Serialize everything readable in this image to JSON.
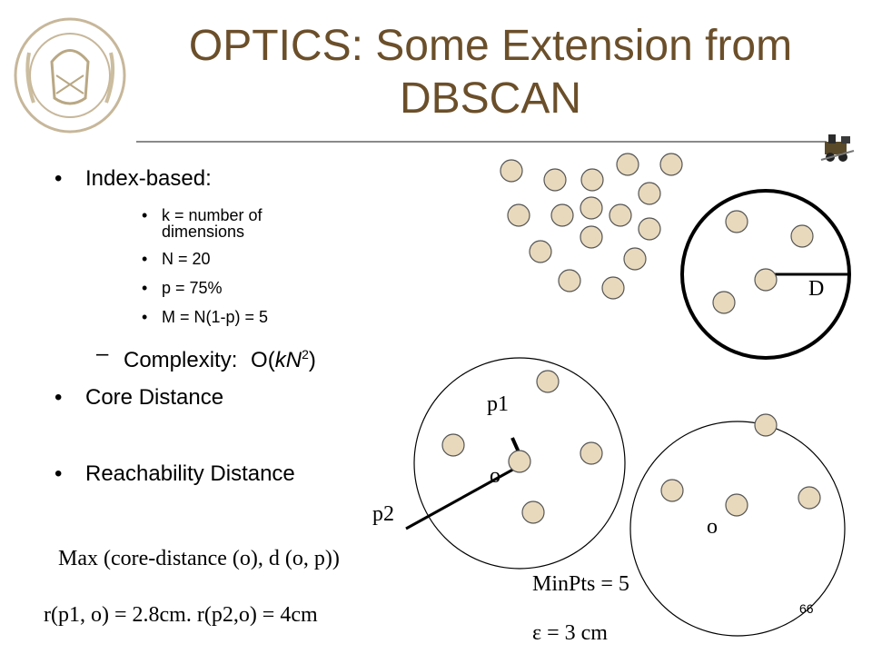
{
  "slide": {
    "title_line1": "OPTICS: Some Extension from",
    "title_line2": "DBSCAN",
    "page_number": "66",
    "bullets": {
      "index_based": "Index-based:",
      "sub": [
        "k = number of",
        "dimensions",
        "N = 20",
        "p = 75%",
        "M = N(1-p) = 5"
      ],
      "complexity_prefix": "Complexity:",
      "complexity_formula_start": "O(",
      "complexity_formula_var": "kN",
      "complexity_formula_sup": "2",
      "complexity_formula_end": ")",
      "core_distance": "Core Distance",
      "reachability_distance": "Reachability Distance"
    },
    "bullet_symbol": "•",
    "dash_symbol": "–",
    "labels": {
      "D": "D",
      "p1": "p1",
      "p2": "p2",
      "o_left": "o",
      "o_right": "o"
    },
    "formulas": {
      "max": "Max (core-distance (o), d (o, p))",
      "distances": "r(p1, o) = 2.8cm.  r(p2,o) = 4cm",
      "minpts": "MinPts = 5",
      "epsilon": "ε  = 3 cm"
    }
  },
  "colors": {
    "title": "#6b4f2a",
    "point_fill": "#e8d9bd",
    "point_stroke": "#555555"
  }
}
